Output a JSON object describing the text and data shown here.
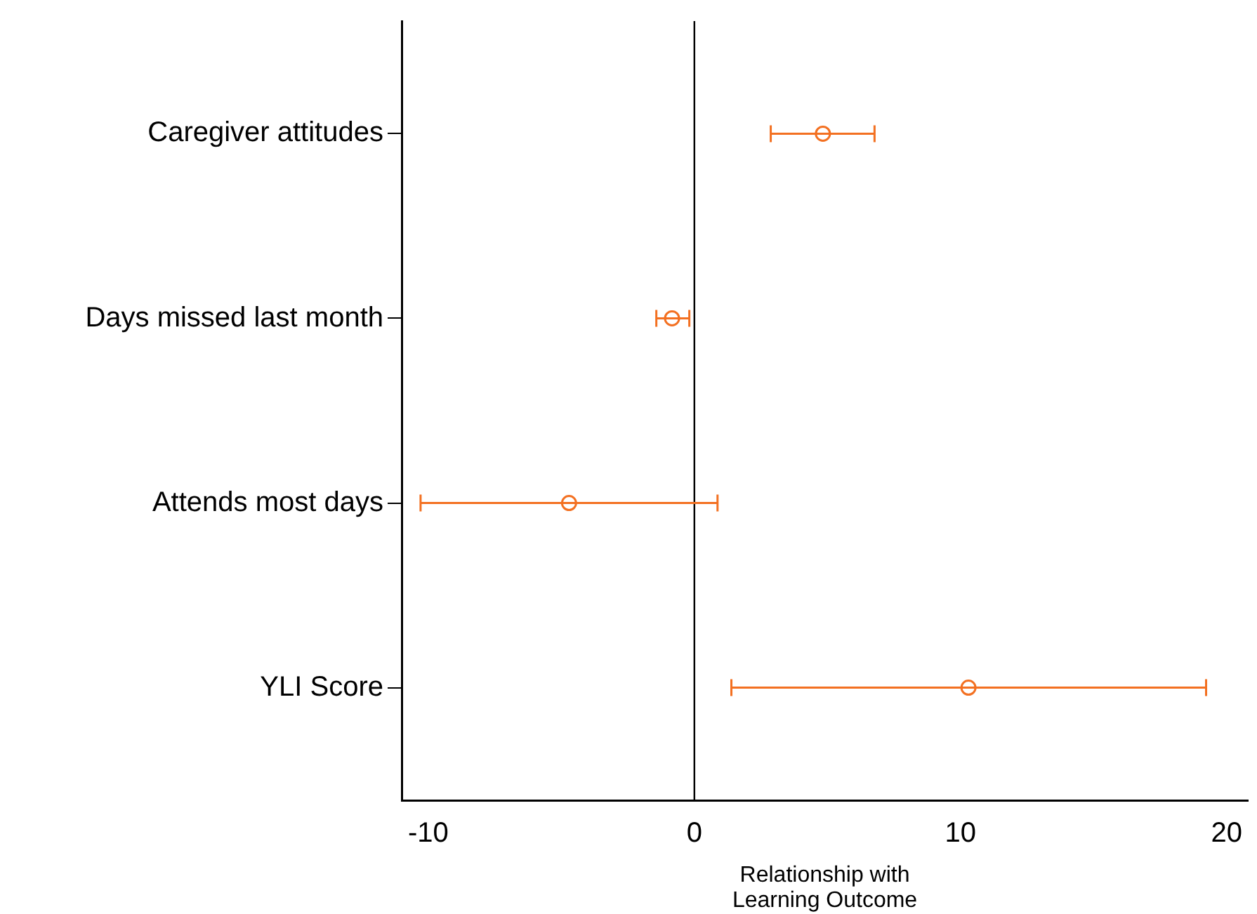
{
  "chart_data": {
    "type": "scatter",
    "orientation": "horizontal",
    "categories": [
      "Caregiver attitudes",
      "Days missed last month",
      "Attends most days",
      "YLI Score"
    ],
    "values": [
      4.83,
      -0.84,
      -4.71,
      10.3
    ],
    "errors": [
      [
        2.87,
        6.77
      ],
      [
        -1.43,
        -0.19
      ],
      [
        -10.29,
        0.87
      ],
      [
        1.39,
        19.23
      ]
    ],
    "color": "#f37021",
    "marker": "circle",
    "xlim": [
      -11,
      20.8
    ],
    "xticks": [
      -10,
      0,
      10,
      20
    ],
    "xlabel": "Relationship with\nLearning Outcome",
    "ref_lines": [
      {
        "axis": "x",
        "value": 0,
        "color": "#000000"
      }
    ]
  }
}
